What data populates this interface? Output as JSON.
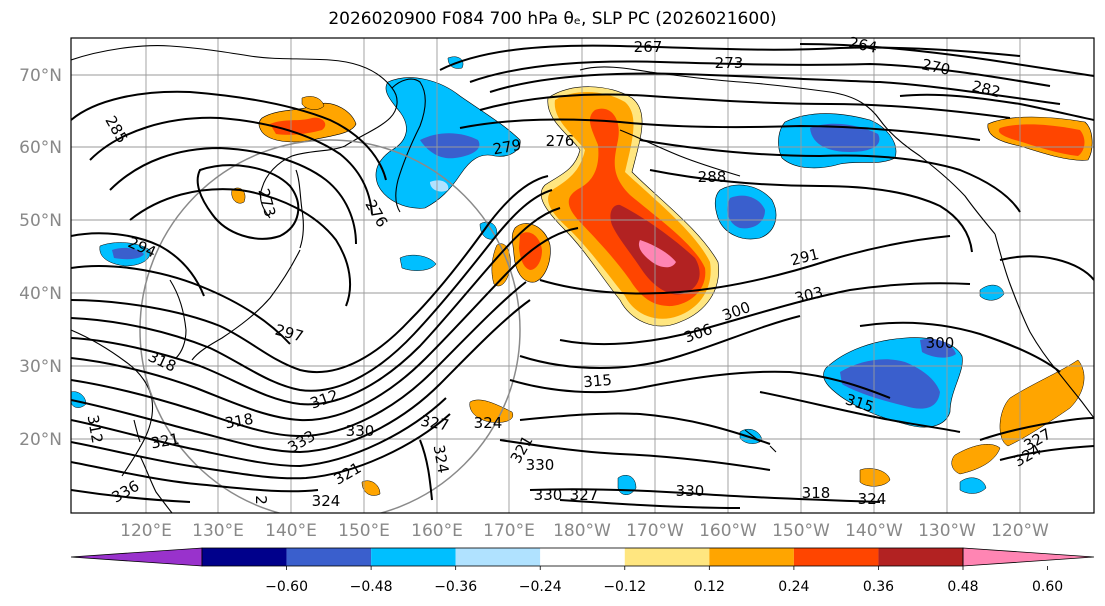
{
  "title": "2026020900 F084 700 hPa θₑ, SLP PC (2026021600)",
  "latitude_labels": [
    "70°N",
    "60°N",
    "50°N",
    "40°N",
    "30°N",
    "20°N"
  ],
  "longitude_labels": [
    "120°E",
    "130°E",
    "140°E",
    "150°E",
    "160°E",
    "170°E",
    "180°W",
    "170°W",
    "160°W",
    "150°W",
    "140°W",
    "130°W",
    "120°W"
  ],
  "contour_labels": [
    "267",
    "264",
    "273",
    "270",
    "282",
    "285",
    "279",
    "276",
    "288",
    "273",
    "276",
    "294",
    "291",
    "303",
    "306",
    "300",
    "297",
    "300",
    "318",
    "315",
    "312",
    "315",
    "318",
    "321",
    "333",
    "330",
    "327",
    "324",
    "324",
    "321",
    "330",
    "330",
    "327",
    "330",
    "318",
    "324",
    "336",
    "324",
    "321",
    "324",
    "327",
    "2",
    "312"
  ],
  "colorbar": {
    "tick_labels": [
      "−0.60",
      "−0.48",
      "−0.36",
      "−0.24",
      "−0.12",
      "0.12",
      "0.24",
      "0.36",
      "0.48",
      "0.60"
    ],
    "colors": [
      "#9932cc",
      "#00008b",
      "#3a5fcd",
      "#00bfff",
      "#b0e2ff",
      "#ffffff",
      "#ffe680",
      "#ffa500",
      "#ff4500",
      "#b22222",
      "#ff85b3"
    ]
  },
  "shading_colors": {
    "neg_light": "#00bfff",
    "neg_dark": "#3a5fcd",
    "neg_pale": "#b0e2ff",
    "pos_yellow": "#ffe680",
    "pos_orange": "#ffa500",
    "pos_red": "#ff4500",
    "pos_darkred": "#b22222",
    "pos_pink": "#ff85b3"
  }
}
